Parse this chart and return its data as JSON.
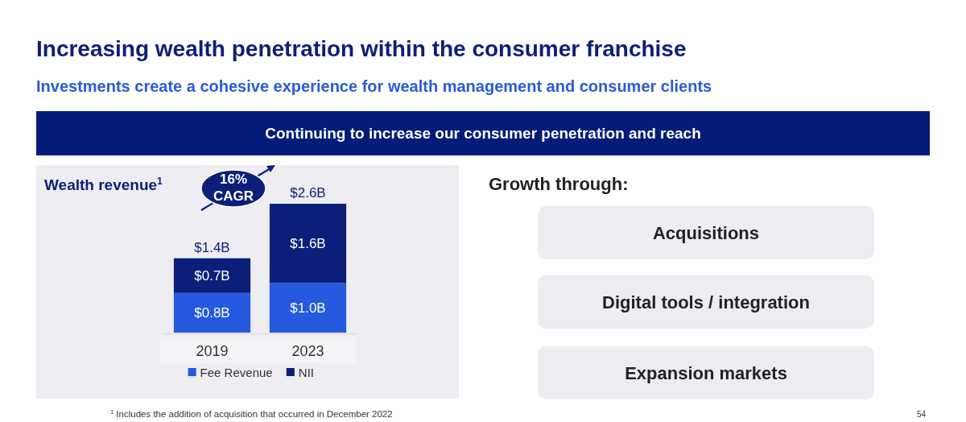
{
  "chart_data": [
    {
      "type": "bar",
      "title": "Wealth revenue$^{1}$",
      "categories": [
        "2019",
        "2023"
      ],
      "stacked": true,
      "legend": "bottom",
      "series": [
        {
          "name": "Fee Revenue",
          "color": "#2459e0",
          "values": [
            0.8,
            1.0
          ],
          "value_labels": [
            "$0.8B",
            "$1.0B"
          ]
        },
        {
          "name": "NII",
          "color": "#0b1f7a",
          "values": [
            0.7,
            1.6
          ],
          "value_labels": [
            "$0.7B",
            "$1.6B"
          ]
        }
      ],
      "totals": [
        "$1.4B",
        "$2.6B"
      ],
      "annotations": [
        "Increasing wealth penetration within the consumer franchise",
        "Investments create a cohesive experience for wealth management and consumer clients",
        "Continuing to increase our consumer penetration and reach",
        "16% CAGR",
        "$^{1}$ Includes the addition of acquisition that occurred in December 2022",
        "54"
      ]
    },
    {
      "type": "other",
      "title": "Growth through:",
      "annotations": [
        "Acquisitions",
        "Digital tools / integration",
        "Expansion markets"
      ]
    }
  ]
}
